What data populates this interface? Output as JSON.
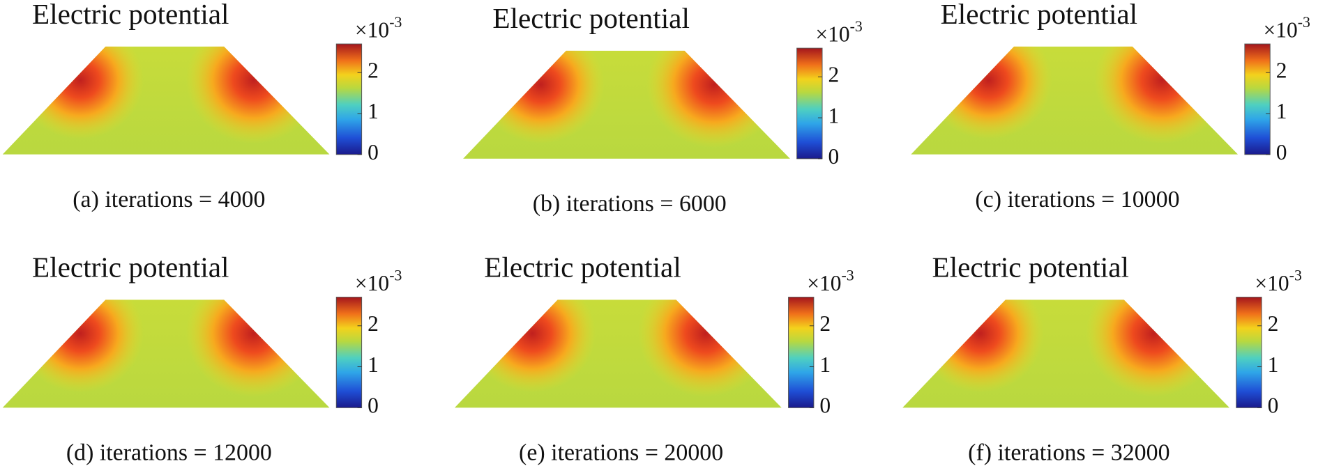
{
  "panels": [
    {
      "title": "Electric potential",
      "scale_base": "×10",
      "scale_exponent": "-3",
      "colorbar": {
        "ticks": [
          0,
          1,
          2
        ],
        "lim": [
          0,
          2.7
        ]
      },
      "caption": "(a) iterations = 4000"
    },
    {
      "title": "Electric potential",
      "scale_base": "×10",
      "scale_exponent": "-3",
      "colorbar": {
        "ticks": [
          0,
          1,
          2
        ],
        "lim": [
          0,
          2.7
        ]
      },
      "caption": "(b) iterations = 6000"
    },
    {
      "title": "Electric potential",
      "scale_base": "×10",
      "scale_exponent": "-3",
      "colorbar": {
        "ticks": [
          0,
          1,
          2
        ],
        "lim": [
          0,
          2.7
        ]
      },
      "caption": "(c) iterations = 10000"
    },
    {
      "title": "Electric potential",
      "scale_base": "×10",
      "scale_exponent": "-3",
      "colorbar": {
        "ticks": [
          0,
          1,
          2
        ],
        "lim": [
          0,
          2.7
        ]
      },
      "caption": "(d) iterations = 12000"
    },
    {
      "title": "Electric potential",
      "scale_base": "×10",
      "scale_exponent": "-3",
      "colorbar": {
        "ticks": [
          0,
          1,
          2
        ],
        "lim": [
          0,
          2.7
        ]
      },
      "caption": "(e) iterations = 20000"
    },
    {
      "title": "Electric potential",
      "scale_base": "×10",
      "scale_exponent": "-3",
      "colorbar": {
        "ticks": [
          0,
          1,
          2
        ],
        "lim": [
          0,
          2.7
        ]
      },
      "caption": "(f) iterations = 32000"
    }
  ]
}
